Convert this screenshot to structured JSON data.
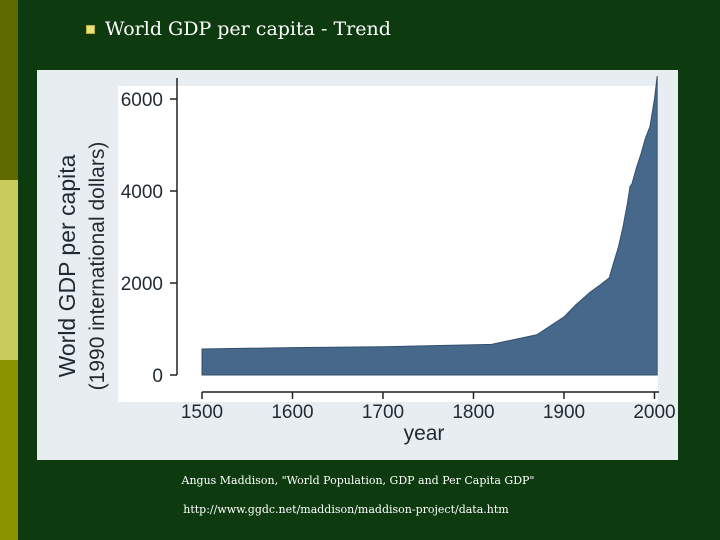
{
  "slide": {
    "title": "World GDP per capita - Trend",
    "source_line_1": "Angus Maddison, \"World Population, GDP and Per Capita GDP\"",
    "source_line_2": "http://www.ggdc.net/maddison/maddison-project/data.htm"
  },
  "colors": {
    "background": "#0e3a10",
    "area_fill": "#46688a",
    "panel": "#e8edf1",
    "plot_bg": "#ffffff"
  },
  "chart_data": {
    "type": "area",
    "title": "",
    "xlabel": "year",
    "ylabel_line1": "World GDP per capita",
    "ylabel_line2": "(1990 international dollars)",
    "xlim": [
      1500,
      2005
    ],
    "ylim": [
      0,
      6500
    ],
    "x_ticks": [
      1500,
      1600,
      1700,
      1800,
      1900,
      2000
    ],
    "y_ticks": [
      0,
      2000,
      4000,
      6000
    ],
    "grid": false,
    "series": [
      {
        "name": "World GDP per capita",
        "x": [
          1500,
          1600,
          1700,
          1820,
          1870,
          1900,
          1913,
          1929,
          1940,
          1950,
          1955,
          1960,
          1965,
          1970,
          1973,
          1975,
          1980,
          1985,
          1990,
          1995,
          2000,
          2003
        ],
        "y": [
          566,
          595,
          615,
          667,
          874,
          1262,
          1525,
          1800,
          1960,
          2110,
          2450,
          2770,
          3200,
          3720,
          4100,
          4150,
          4500,
          4800,
          5150,
          5400,
          6000,
          6500
        ]
      }
    ]
  }
}
